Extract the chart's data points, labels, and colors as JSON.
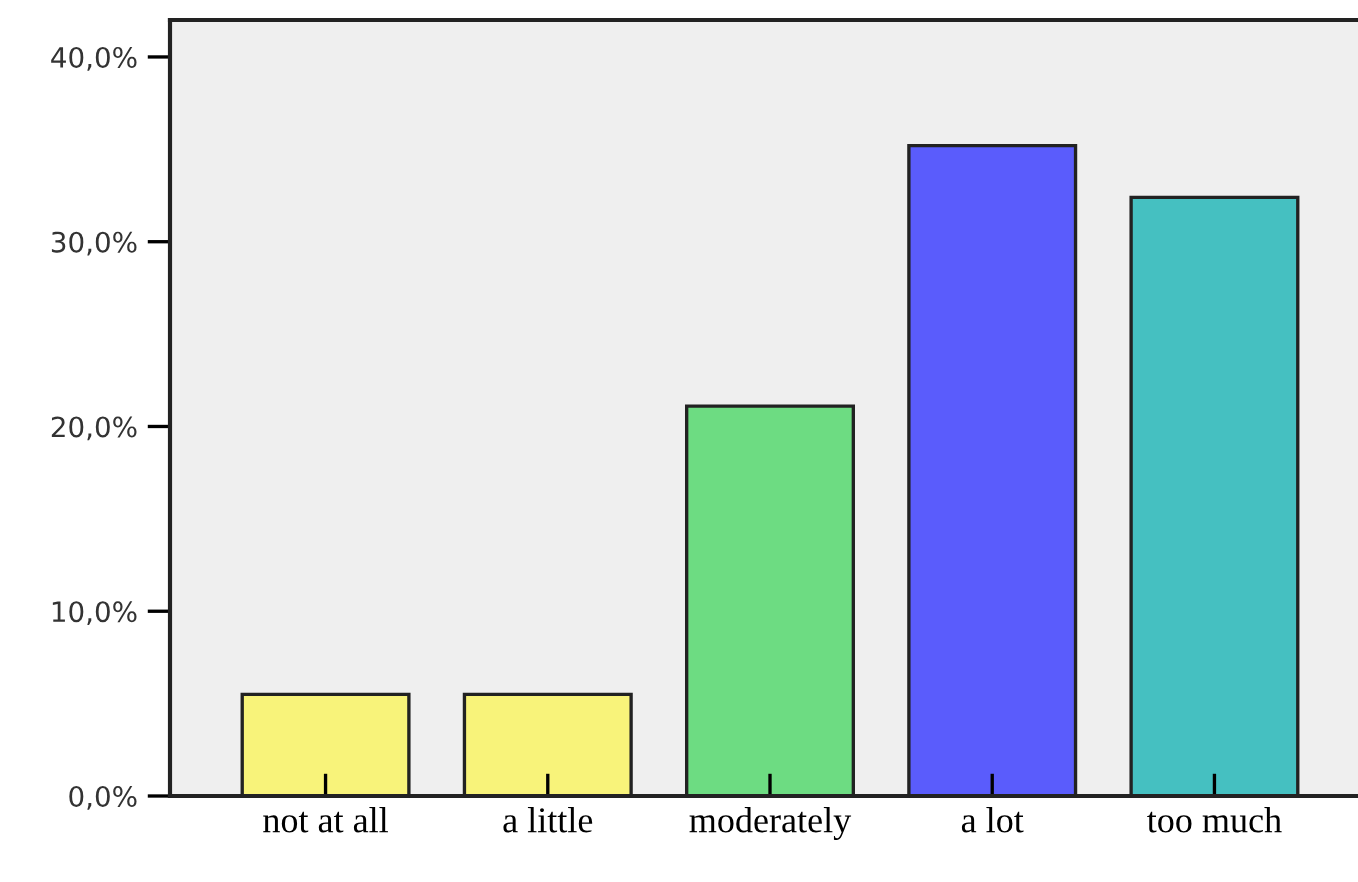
{
  "chart_data": {
    "type": "bar",
    "categories": [
      "not at all",
      "a little",
      "moderately",
      "a lot",
      "too much"
    ],
    "values": [
      5.5,
      5.5,
      21.1,
      35.2,
      32.4
    ],
    "colors": [
      "#f8f37a",
      "#f8f37a",
      "#6ddc82",
      "#5a5cfc",
      "#45c0c1"
    ],
    "ylim": [
      0,
      42
    ],
    "yticks": [
      {
        "value": 0,
        "label": "0,0%"
      },
      {
        "value": 10,
        "label": "10,0%"
      },
      {
        "value": 20,
        "label": "20,0%"
      },
      {
        "value": 30,
        "label": "30,0%"
      },
      {
        "value": 40,
        "label": "40,0%"
      }
    ],
    "grid": false
  }
}
